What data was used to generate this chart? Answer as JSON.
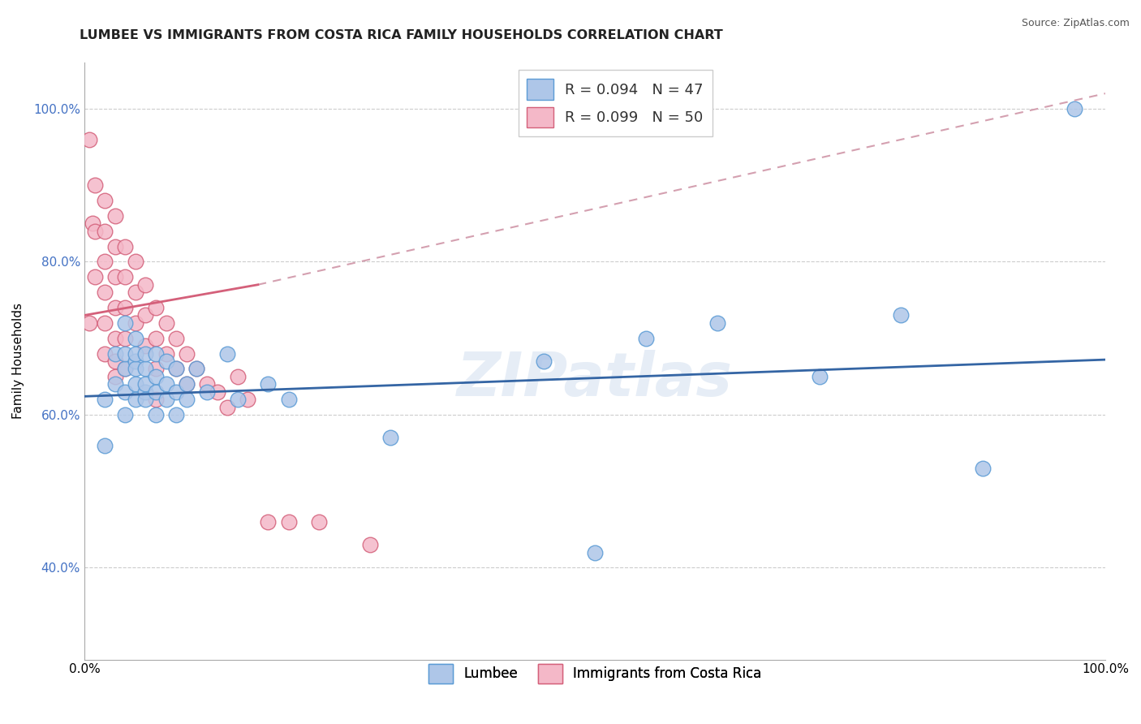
{
  "title": "LUMBEE VS IMMIGRANTS FROM COSTA RICA FAMILY HOUSEHOLDS CORRELATION CHART",
  "source": "Source: ZipAtlas.com",
  "ylabel": "Family Households",
  "xlim": [
    0,
    1
  ],
  "ylim": [
    0.28,
    1.06
  ],
  "yticks": [
    0.4,
    0.6,
    0.8,
    1.0
  ],
  "ytick_labels": [
    "40.0%",
    "60.0%",
    "80.0%",
    "100.0%"
  ],
  "xtick_labels": [
    "0.0%",
    "100.0%"
  ],
  "legend_entries": [
    {
      "label": "R = 0.094   N = 47",
      "color": "#aec6e8"
    },
    {
      "label": "R = 0.099   N = 50",
      "color": "#f4b8c8"
    }
  ],
  "watermark": "ZIPatlas",
  "lumbee_color": "#aec6e8",
  "lumbee_edge": "#5b9bd5",
  "cr_color": "#f4b8c8",
  "cr_edge": "#d4607a",
  "lumbee_line_color": "#3465a4",
  "cr_line_color": "#d4607a",
  "diag_line_color": "#d4a0b0",
  "lumbee_x": [
    0.02,
    0.02,
    0.03,
    0.03,
    0.04,
    0.04,
    0.04,
    0.04,
    0.04,
    0.05,
    0.05,
    0.05,
    0.05,
    0.05,
    0.05,
    0.06,
    0.06,
    0.06,
    0.06,
    0.06,
    0.07,
    0.07,
    0.07,
    0.07,
    0.08,
    0.08,
    0.08,
    0.09,
    0.09,
    0.09,
    0.1,
    0.1,
    0.11,
    0.12,
    0.14,
    0.15,
    0.18,
    0.2,
    0.3,
    0.45,
    0.5,
    0.55,
    0.62,
    0.72,
    0.8,
    0.88,
    0.97
  ],
  "lumbee_y": [
    0.56,
    0.62,
    0.68,
    0.64,
    0.72,
    0.66,
    0.63,
    0.68,
    0.6,
    0.67,
    0.64,
    0.62,
    0.66,
    0.7,
    0.68,
    0.63,
    0.66,
    0.68,
    0.64,
    0.62,
    0.65,
    0.68,
    0.63,
    0.6,
    0.64,
    0.67,
    0.62,
    0.63,
    0.66,
    0.6,
    0.64,
    0.62,
    0.66,
    0.63,
    0.68,
    0.62,
    0.64,
    0.62,
    0.57,
    0.67,
    0.42,
    0.7,
    0.72,
    0.65,
    0.73,
    0.53,
    1.0
  ],
  "cr_x": [
    0.005,
    0.005,
    0.008,
    0.01,
    0.01,
    0.01,
    0.02,
    0.02,
    0.02,
    0.02,
    0.02,
    0.02,
    0.03,
    0.03,
    0.03,
    0.03,
    0.03,
    0.03,
    0.03,
    0.04,
    0.04,
    0.04,
    0.04,
    0.04,
    0.05,
    0.05,
    0.05,
    0.06,
    0.06,
    0.06,
    0.07,
    0.07,
    0.07,
    0.07,
    0.08,
    0.08,
    0.09,
    0.09,
    0.1,
    0.1,
    0.11,
    0.12,
    0.13,
    0.14,
    0.15,
    0.16,
    0.18,
    0.2,
    0.23,
    0.28
  ],
  "cr_y": [
    0.96,
    0.72,
    0.85,
    0.9,
    0.84,
    0.78,
    0.88,
    0.84,
    0.8,
    0.76,
    0.72,
    0.68,
    0.86,
    0.82,
    0.78,
    0.74,
    0.7,
    0.67,
    0.65,
    0.82,
    0.78,
    0.74,
    0.7,
    0.66,
    0.8,
    0.76,
    0.72,
    0.77,
    0.73,
    0.69,
    0.74,
    0.7,
    0.66,
    0.62,
    0.72,
    0.68,
    0.7,
    0.66,
    0.68,
    0.64,
    0.66,
    0.64,
    0.63,
    0.61,
    0.65,
    0.62,
    0.46,
    0.46,
    0.46,
    0.43
  ],
  "background_color": "#ffffff",
  "grid_color": "#cccccc"
}
